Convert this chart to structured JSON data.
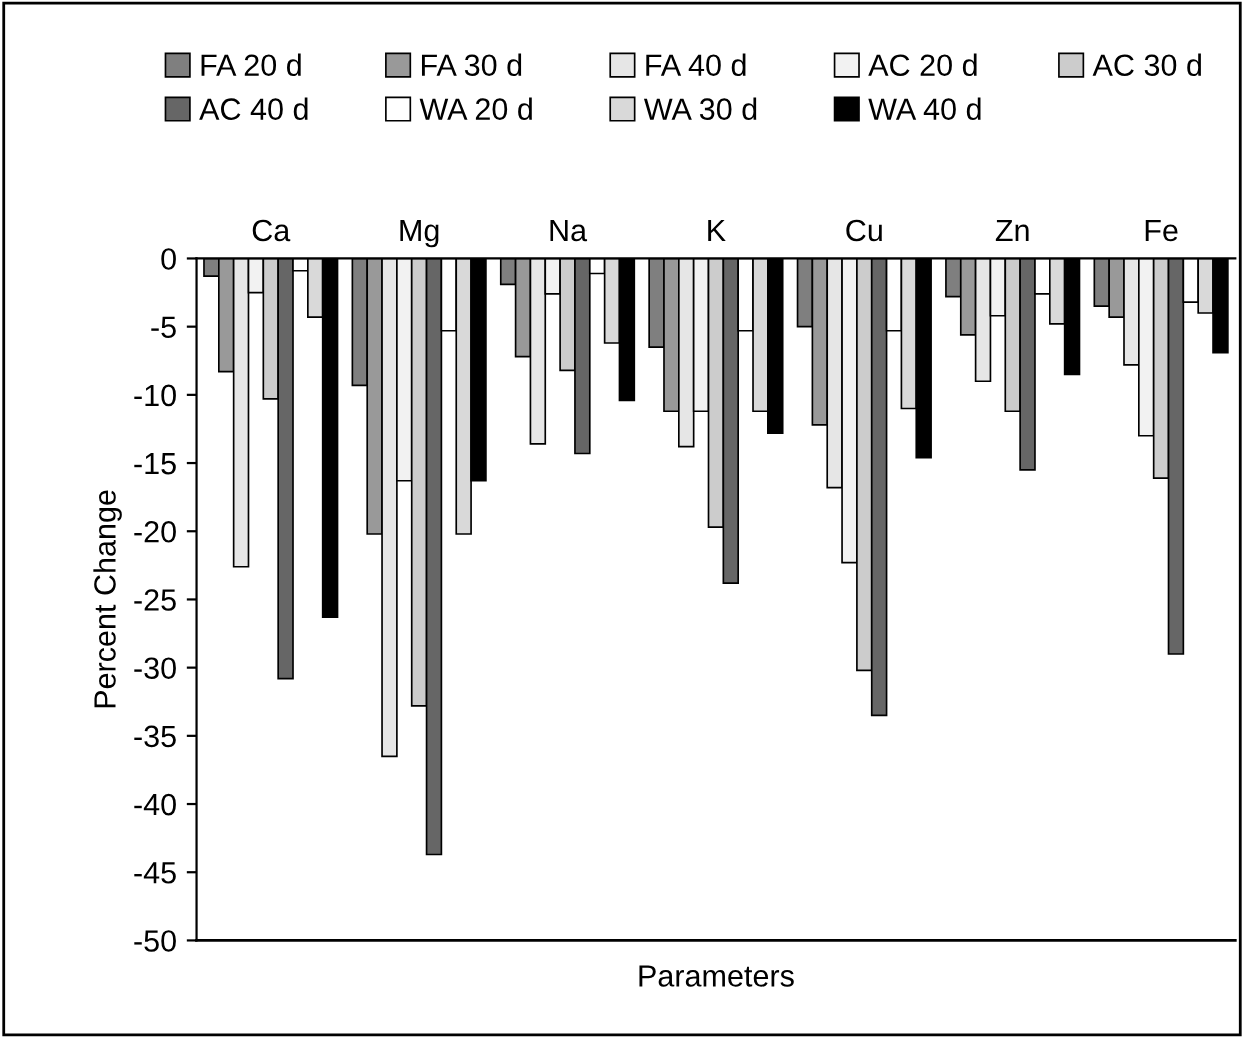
{
  "chart_data": {
    "type": "bar",
    "xlabel": "Parameters",
    "ylabel": "Percent Change",
    "categories": [
      "Ca",
      "Mg",
      "Na",
      "K",
      "Cu",
      "Zn",
      "Fe"
    ],
    "series": [
      {
        "name": "FA 20 d",
        "color": "#7f7f7f",
        "values": [
          -1.3,
          -9.3,
          -1.9,
          -6.5,
          -5.0,
          -2.8,
          -3.5
        ]
      },
      {
        "name": "FA 30 d",
        "color": "#999999",
        "values": [
          -8.3,
          -20.2,
          -7.2,
          -11.2,
          -12.2,
          -5.6,
          -4.3
        ]
      },
      {
        "name": "FA 40 d",
        "color": "#e6e6e6",
        "values": [
          -22.6,
          -36.5,
          -13.6,
          -13.8,
          -16.8,
          -9.0,
          -7.8
        ]
      },
      {
        "name": "AC 20 d",
        "color": "#f2f2f2",
        "values": [
          -2.5,
          -16.3,
          -2.6,
          -11.2,
          -22.3,
          -4.2,
          -13.0
        ]
      },
      {
        "name": "AC 30 d",
        "color": "#cccccc",
        "values": [
          -10.3,
          -32.8,
          -8.2,
          -19.7,
          -30.2,
          -11.2,
          -16.1
        ]
      },
      {
        "name": "AC 40 d",
        "color": "#666666",
        "values": [
          -30.8,
          -43.7,
          -14.3,
          -23.8,
          -33.5,
          -15.5,
          -29.0
        ]
      },
      {
        "name": "WA 20 d",
        "color": "#ffffff",
        "values": [
          -0.9,
          -5.3,
          -1.1,
          -5.3,
          -5.3,
          -2.6,
          -3.2
        ]
      },
      {
        "name": "WA 30 d",
        "color": "#d9d9d9",
        "values": [
          -4.3,
          -20.2,
          -6.2,
          -11.2,
          -11.0,
          -4.8,
          -4.0
        ]
      },
      {
        "name": "WA 40 d",
        "color": "#000000",
        "values": [
          -26.3,
          -16.3,
          -10.4,
          -12.8,
          -14.6,
          -8.5,
          -6.9
        ]
      }
    ],
    "ylim": [
      -50,
      0
    ],
    "yticks": [
      0,
      -5,
      -10,
      -15,
      -20,
      -25,
      -30,
      -35,
      -40,
      -45,
      -50
    ],
    "grid": false,
    "legend": "top"
  }
}
